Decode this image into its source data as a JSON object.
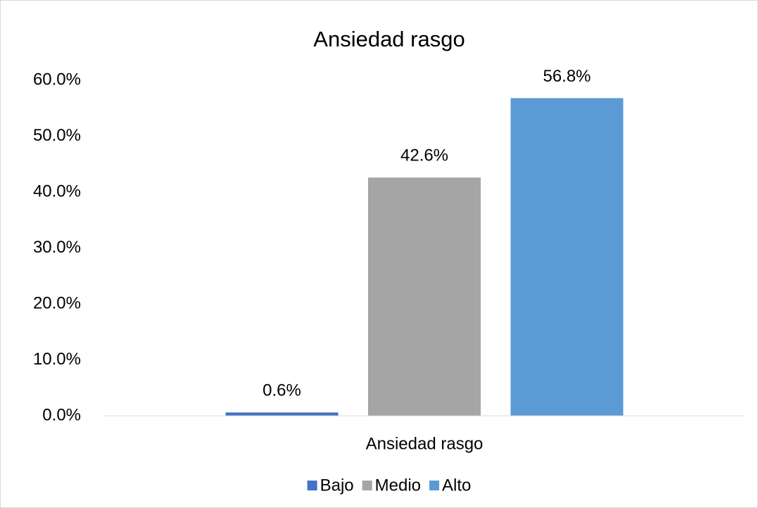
{
  "chart_data": {
    "type": "bar",
    "title": "Ansiedad rasgo",
    "categories": [
      "Ansiedad rasgo"
    ],
    "series": [
      {
        "name": "Bajo",
        "color": "#4472c4",
        "values": [
          0.6
        ],
        "value_labels": [
          "0.6%"
        ]
      },
      {
        "name": "Medio",
        "color": "#a5a5a5",
        "values": [
          42.6
        ],
        "value_labels": [
          "42.6%"
        ]
      },
      {
        "name": "Alto",
        "color": "#5b9bd5",
        "values": [
          56.8
        ],
        "value_labels": [
          "56.8%"
        ]
      }
    ],
    "ylim": [
      0,
      60
    ],
    "yticks": [
      {
        "value": 0,
        "label": "0.0%"
      },
      {
        "value": 10,
        "label": "10.0%"
      },
      {
        "value": 20,
        "label": "20.0%"
      },
      {
        "value": 30,
        "label": "30.0%"
      },
      {
        "value": 40,
        "label": "40.0%"
      },
      {
        "value": 50,
        "label": "50.0%"
      },
      {
        "value": 60,
        "label": "60.0%"
      }
    ],
    "grid": false,
    "legend": "bottom"
  }
}
